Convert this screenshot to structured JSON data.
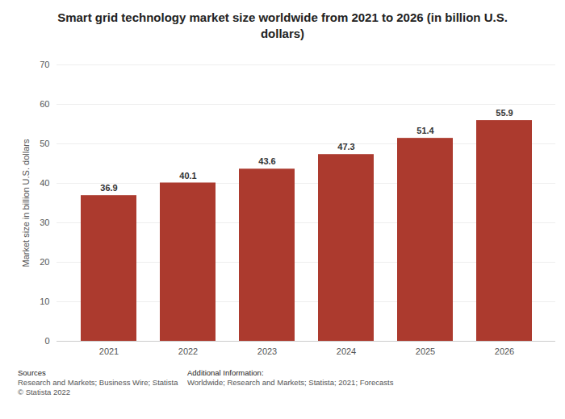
{
  "chart_data": {
    "type": "bar",
    "title": "Smart grid technology market size worldwide from 2021 to 2026 (in billion U.S. dollars)",
    "y_label": "Market size in billion U.S. dollars",
    "categories": [
      "2021",
      "2022",
      "2023",
      "2024",
      "2025",
      "2026"
    ],
    "values": [
      36.9,
      40.1,
      43.6,
      47.3,
      51.4,
      55.9
    ],
    "color": "#ac3a2e",
    "ylim": [
      0,
      70
    ],
    "yticks": [
      0,
      10,
      20,
      30,
      40,
      50,
      60,
      70
    ],
    "grid": true,
    "data_labels": true,
    "sources_heading": "Sources",
    "sources": "Research and Markets; Business Wire; Statista",
    "copyright": "© Statista 2022",
    "additional_info_heading": "Additional Information:",
    "additional_info": "Worldwide; Research and Markets; Statista; 2021; Forecasts"
  }
}
